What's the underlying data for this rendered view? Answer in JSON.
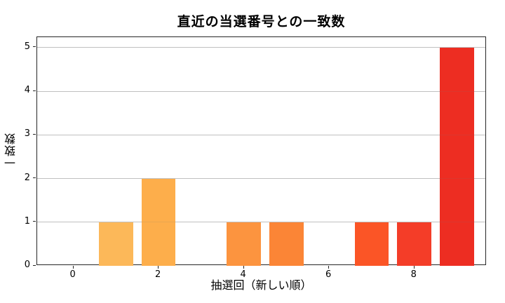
{
  "chart_data": {
    "type": "bar",
    "title": "直近の当選番号との一致数",
    "xlabel": "抽選回（新しい順）",
    "ylabel": "一致数",
    "categories": [
      0,
      1,
      2,
      3,
      4,
      5,
      6,
      7,
      8,
      9
    ],
    "values": [
      0,
      1,
      2,
      0,
      1,
      1,
      0,
      1,
      1,
      5
    ],
    "bar_colors": [
      null,
      "#FCB859",
      "#FDAE4B",
      null,
      "#FC943F",
      "#FB8536",
      null,
      "#FB5526",
      "#F43D28",
      "#ED2D22"
    ],
    "bar_width": 0.8,
    "xticks": [
      0,
      2,
      4,
      6,
      8
    ],
    "yticks": [
      0,
      1,
      2,
      3,
      4,
      5
    ],
    "xlim": [
      -0.85,
      9.7
    ],
    "ylim": [
      0,
      5.24
    ],
    "grid": "horizontal",
    "grid_color": "#cccccc",
    "spine_color": "#262626",
    "background": "#ffffff",
    "legend": "none"
  }
}
